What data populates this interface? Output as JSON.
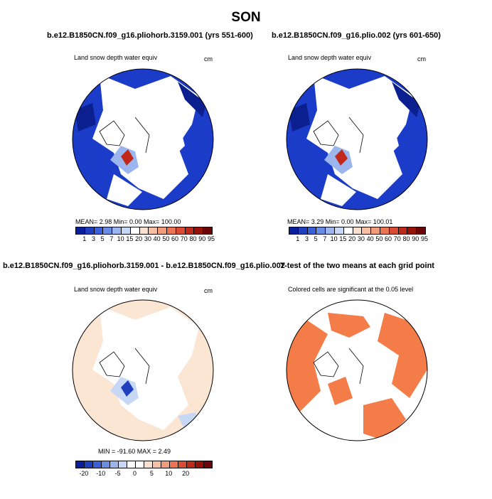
{
  "title": "SON",
  "panels": [
    {
      "title": "b.e12.B1850CN.f09_g16.pliohorb.3159.001 (yrs 551-600)",
      "left_label": "Land snow depth water equiv",
      "right_label": "cm",
      "stats": "MEAN=    2.98  Min=    0.00  Max= 100.00"
    },
    {
      "title": "b.e12.B1850CN.f09_g16.plio.002 (yrs 601-650)",
      "left_label": "Land snow depth water equiv",
      "right_label": "cm",
      "stats": "MEAN=    3.29  Min=    0.00  Max= 100.01"
    },
    {
      "title": "b.e12.B1850CN.f09_g16.pliohorb.3159.001 - b.e12.B1850CN.f09_g16.plio.002",
      "left_label": "Land snow depth water equiv",
      "right_label": "cm",
      "stats": "MIN = -91.60 MAX =    2.49"
    },
    {
      "title": "T-test of the two means at each grid point",
      "left_label": "Colored cells are significant at the 0.05 level",
      "right_label": "",
      "stats": ""
    }
  ],
  "colorbar_abs": {
    "colors": [
      "#0a1f9c",
      "#1f3fbf",
      "#3a5fd6",
      "#6a8ce4",
      "#9bb6ef",
      "#c6d8f6",
      "#ffffff",
      "#fbe0d0",
      "#f7c0a4",
      "#f29d7a",
      "#ea7453",
      "#d94c33",
      "#bd2a1c",
      "#961209",
      "#6b0606"
    ],
    "labels": [
      "1",
      "3",
      "5",
      "7",
      "10",
      "15",
      "20",
      "30",
      "40",
      "50",
      "60",
      "70",
      "80",
      "90",
      "95"
    ]
  },
  "colorbar_diff": {
    "colors": [
      "#0a1f9c",
      "#1f3fbf",
      "#3a5fd6",
      "#6a8ce4",
      "#9bb6ef",
      "#c6d8f6",
      "#ffffff",
      "#ffffff",
      "#fbe0d0",
      "#f7c0a4",
      "#f29d7a",
      "#ea7453",
      "#d94c33",
      "#bd2a1c",
      "#961209",
      "#6b0606"
    ],
    "labels": [
      "-20",
      "-10",
      "-5",
      "0",
      "5",
      "10",
      "20"
    ]
  },
  "colors": {
    "snow_blue": "#1a3cc8",
    "snow_dark": "#0c1f8e",
    "snow_red": "#c0281c",
    "diff_bg": "#fbe6d4",
    "diff_blue": "#1f3fbf",
    "ttest_orange": "#f47c48"
  }
}
